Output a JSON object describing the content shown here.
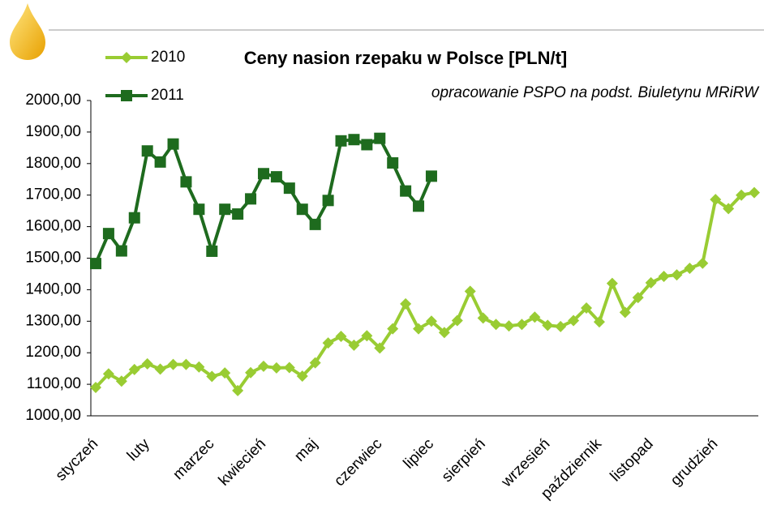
{
  "chart_data": {
    "type": "line",
    "title": "Ceny nasion rzepaku w Polsce [PLN/t]",
    "subtitle": "opracowanie PSPO na podst. Biuletynu MRiRW",
    "categories": [
      "styczeń",
      null,
      null,
      null,
      "luty",
      null,
      null,
      null,
      null,
      "marzec",
      null,
      null,
      null,
      "kwiecień",
      null,
      null,
      null,
      "maj",
      null,
      null,
      null,
      null,
      "czerwiec",
      null,
      null,
      null,
      "lipiec",
      null,
      null,
      null,
      "sierpień",
      null,
      null,
      null,
      null,
      "wrzesień",
      null,
      null,
      null,
      "październik",
      null,
      null,
      null,
      "listopad",
      null,
      null,
      null,
      null,
      "grudzień",
      null,
      null,
      null
    ],
    "series": [
      {
        "name": "2010",
        "color": "#99cc33",
        "marker": "diamond",
        "values": [
          1090,
          1133,
          1110,
          1147,
          1165,
          1148,
          1163,
          1163,
          1155,
          1125,
          1136,
          1080,
          1137,
          1157,
          1152,
          1153,
          1126,
          1168,
          1231,
          1252,
          1224,
          1254,
          1215,
          1276,
          1355,
          1276,
          1300,
          1264,
          1302,
          1395,
          1310,
          1290,
          1285,
          1290,
          1313,
          1287,
          1283,
          1302,
          1342,
          1298,
          1420,
          1328,
          1375,
          1422,
          1442,
          1447,
          1468,
          1484,
          1686,
          1657,
          1700,
          1708
        ]
      },
      {
        "name": "2011",
        "color": "#1e6b1e",
        "marker": "square",
        "values": [
          1483,
          1578,
          1523,
          1628,
          1840,
          1805,
          1862,
          1742,
          1655,
          1522,
          1655,
          1640,
          1688,
          1768,
          1758,
          1722,
          1655,
          1607,
          1683,
          1872,
          1876,
          1860,
          1880,
          1802,
          1713,
          1665,
          1760,
          null,
          null,
          null,
          null,
          null,
          null,
          null,
          null,
          null,
          null,
          null,
          null,
          null,
          null,
          null,
          null,
          null,
          null,
          null,
          null,
          null,
          null,
          null,
          null,
          null
        ]
      }
    ],
    "ylim": [
      1000,
      2000
    ],
    "yticks": [
      {
        "value": 1000,
        "label": "1000,00"
      },
      {
        "value": 1100,
        "label": "1100,00"
      },
      {
        "value": 1200,
        "label": "1200,00"
      },
      {
        "value": 1300,
        "label": "1300,00"
      },
      {
        "value": 1400,
        "label": "1400,00"
      },
      {
        "value": 1500,
        "label": "1500,00"
      },
      {
        "value": 1600,
        "label": "1600,00"
      },
      {
        "value": 1700,
        "label": "1700,00"
      },
      {
        "value": 1800,
        "label": "1800,00"
      },
      {
        "value": 1900,
        "label": "1900,00"
      },
      {
        "value": 2000,
        "label": "2000,00"
      }
    ],
    "grid": false
  }
}
